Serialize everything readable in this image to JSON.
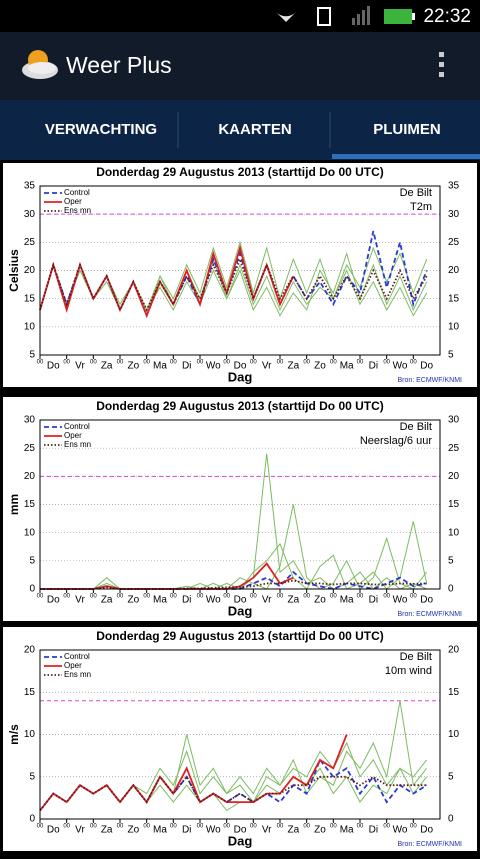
{
  "status_bar": {
    "time": "22:32"
  },
  "app_bar": {
    "title": "Weer Plus"
  },
  "tabs": [
    "VERWACHTING",
    "KAARTEN",
    "PLUIMEN"
  ],
  "chart_data": [
    {
      "type": "line",
      "title": "Donderdag 29 Augustus 2013  (starttijd  Do 00 UTC)",
      "ylabel": "Celsius",
      "xlabel": "Dag",
      "location": "De Bilt",
      "variable": "T2m",
      "source": "Bron: ECMWF/KNMI",
      "x": [
        0,
        0.5,
        1,
        1.5,
        2,
        2.5,
        3,
        3.5,
        4,
        4.5,
        5,
        5.5,
        6,
        6.5,
        7,
        7.5,
        8,
        8.5,
        9,
        9.5,
        10,
        10.5,
        11,
        11.5,
        12,
        12.5,
        13,
        13.5,
        14,
        14.5
      ],
      "xlim": [
        0,
        15
      ],
      "xticks": [
        {
          "value": 0,
          "label": "00"
        },
        {
          "value": 1,
          "label": "00"
        },
        {
          "value": 2,
          "label": "00"
        },
        {
          "value": 3,
          "label": "00"
        },
        {
          "value": 4,
          "label": "00"
        },
        {
          "value": 5,
          "label": "00"
        },
        {
          "value": 6,
          "label": "00"
        },
        {
          "value": 7,
          "label": "00"
        },
        {
          "value": 8,
          "label": "00"
        },
        {
          "value": 9,
          "label": "00"
        },
        {
          "value": 10,
          "label": "00"
        },
        {
          "value": 11,
          "label": "00"
        },
        {
          "value": 12,
          "label": "00"
        },
        {
          "value": 13,
          "label": "00"
        },
        {
          "value": 14,
          "label": "00"
        }
      ],
      "day_ticks": [
        {
          "value": 0.5,
          "label": "Do"
        },
        {
          "value": 1.5,
          "label": "Vr"
        },
        {
          "value": 2.5,
          "label": "Za"
        },
        {
          "value": 3.5,
          "label": "Zo"
        },
        {
          "value": 4.5,
          "label": "Ma"
        },
        {
          "value": 5.5,
          "label": "Di"
        },
        {
          "value": 6.5,
          "label": "Wo"
        },
        {
          "value": 7.5,
          "label": "Do"
        },
        {
          "value": 8.5,
          "label": "Vr"
        },
        {
          "value": 9.5,
          "label": "Za"
        },
        {
          "value": 10.5,
          "label": "Zo"
        },
        {
          "value": 11.5,
          "label": "Ma"
        },
        {
          "value": 12.5,
          "label": "Di"
        },
        {
          "value": 13.5,
          "label": "Wo"
        },
        {
          "value": 14.5,
          "label": "Do"
        }
      ],
      "ylim": [
        5,
        35
      ],
      "yticks": [
        5,
        10,
        15,
        20,
        25,
        30,
        35
      ],
      "threshold": 30,
      "grid": true,
      "series": [
        {
          "color": "#7dbb62",
          "style": "solid",
          "values": [
            13,
            21,
            14,
            21,
            15,
            19,
            13,
            18,
            13,
            19,
            15,
            21,
            16,
            24,
            17,
            25,
            16,
            24,
            15,
            22,
            16,
            22,
            15,
            20,
            14,
            18,
            13,
            17,
            12,
            16
          ]
        },
        {
          "color": "#7dbb62",
          "style": "solid",
          "values": [
            13,
            21,
            14,
            20,
            15,
            19,
            14,
            18,
            13,
            17,
            13,
            18,
            14,
            20,
            15,
            21,
            14,
            19,
            13,
            18,
            14,
            17,
            15,
            21,
            17,
            24,
            18,
            23,
            16,
            22
          ]
        },
        {
          "color": "#7dbb62",
          "style": "solid",
          "values": [
            13,
            21,
            13,
            21,
            15,
            18,
            13,
            18,
            12,
            19,
            14,
            20,
            15,
            22,
            15,
            20,
            13,
            17,
            12,
            16,
            13,
            20,
            16,
            23,
            15,
            21,
            14,
            19,
            13,
            18
          ]
        },
        {
          "name": "Control",
          "color": "#2a3ad0",
          "style": "dashed",
          "values": [
            13,
            21,
            14,
            21,
            15,
            19,
            13,
            18,
            12,
            18,
            14,
            19,
            14,
            22,
            16,
            23,
            15,
            21,
            14,
            19,
            15,
            18,
            14,
            19,
            16,
            27,
            17,
            25,
            14,
            20
          ]
        },
        {
          "name": "Oper",
          "color": "#e02020",
          "style": "solid",
          "values": [
            13,
            21,
            13,
            21,
            15,
            19,
            13,
            18,
            12,
            18,
            14,
            20,
            14,
            23,
            16,
            24,
            15,
            21,
            14,
            19,
            null,
            null,
            null,
            null,
            null,
            null,
            null,
            null,
            null,
            null
          ]
        },
        {
          "name": "Ens mn",
          "color": "#5a1c1c",
          "style": "dotted",
          "values": [
            13,
            21,
            14,
            21,
            15,
            19,
            13,
            18,
            13,
            18,
            14,
            19,
            15,
            21,
            16,
            22,
            15,
            21,
            15,
            19,
            15,
            19,
            15,
            19,
            15,
            20,
            15,
            20,
            15,
            19
          ]
        }
      ]
    },
    {
      "type": "line",
      "title": "Donderdag 29 Augustus 2013  (starttijd  Do 00 UTC)",
      "ylabel": "mm",
      "xlabel": "Dag",
      "location": "De Bilt",
      "variable": "Neerslag/6 uur",
      "source": "Bron: ECMWF/KNMI",
      "x": [
        0,
        0.5,
        1,
        1.5,
        2,
        2.5,
        3,
        3.5,
        4,
        4.5,
        5,
        5.5,
        6,
        6.5,
        7,
        7.5,
        8,
        8.5,
        9,
        9.5,
        10,
        10.5,
        11,
        11.5,
        12,
        12.5,
        13,
        13.5,
        14,
        14.5
      ],
      "xlim": [
        0,
        15
      ],
      "xticks": [
        {
          "value": 0,
          "label": "00"
        },
        {
          "value": 1,
          "label": "00"
        },
        {
          "value": 2,
          "label": "00"
        },
        {
          "value": 3,
          "label": "00"
        },
        {
          "value": 4,
          "label": "00"
        },
        {
          "value": 5,
          "label": "00"
        },
        {
          "value": 6,
          "label": "00"
        },
        {
          "value": 7,
          "label": "00"
        },
        {
          "value": 8,
          "label": "00"
        },
        {
          "value": 9,
          "label": "00"
        },
        {
          "value": 10,
          "label": "00"
        },
        {
          "value": 11,
          "label": "00"
        },
        {
          "value": 12,
          "label": "00"
        },
        {
          "value": 13,
          "label": "00"
        },
        {
          "value": 14,
          "label": "00"
        }
      ],
      "day_ticks": [
        {
          "value": 0.5,
          "label": "Do"
        },
        {
          "value": 1.5,
          "label": "Vr"
        },
        {
          "value": 2.5,
          "label": "Za"
        },
        {
          "value": 3.5,
          "label": "Zo"
        },
        {
          "value": 4.5,
          "label": "Ma"
        },
        {
          "value": 5.5,
          "label": "Di"
        },
        {
          "value": 6.5,
          "label": "Wo"
        },
        {
          "value": 7.5,
          "label": "Do"
        },
        {
          "value": 8.5,
          "label": "Vr"
        },
        {
          "value": 9.5,
          "label": "Za"
        },
        {
          "value": 10.5,
          "label": "Zo"
        },
        {
          "value": 11.5,
          "label": "Ma"
        },
        {
          "value": 12.5,
          "label": "Di"
        },
        {
          "value": 13.5,
          "label": "Wo"
        },
        {
          "value": 14.5,
          "label": "Do"
        }
      ],
      "ylim": [
        0,
        30
      ],
      "yticks": [
        0,
        5,
        10,
        15,
        20,
        25,
        30
      ],
      "threshold": 20,
      "grid": true,
      "series": [
        {
          "color": "#7dbb62",
          "style": "solid",
          "values": [
            0,
            0,
            0,
            0,
            0,
            1,
            0,
            0,
            0,
            0,
            0,
            0,
            0,
            1,
            0,
            0,
            2,
            24,
            3,
            5,
            1,
            2,
            0,
            1,
            3,
            0,
            2,
            0,
            1,
            0
          ]
        },
        {
          "color": "#7dbb62",
          "style": "solid",
          "values": [
            0,
            0,
            0,
            0,
            0,
            0,
            0,
            0,
            0,
            0,
            0,
            0.5,
            0,
            0,
            1,
            0,
            3,
            5,
            8,
            2,
            0,
            4,
            6,
            0,
            1,
            3,
            0,
            2,
            12,
            1
          ]
        },
        {
          "color": "#7dbb62",
          "style": "solid",
          "values": [
            0,
            0,
            0,
            0,
            0,
            2,
            0,
            0,
            0,
            0,
            0,
            0,
            1,
            0,
            0,
            2,
            1,
            0,
            4,
            15,
            2,
            0,
            1,
            5,
            0,
            2,
            9,
            1,
            0,
            3
          ]
        },
        {
          "name": "Control",
          "color": "#2a3ad0",
          "style": "dashed",
          "values": [
            0,
            0,
            0,
            0,
            0,
            0.5,
            0,
            0,
            0,
            0,
            0,
            0,
            0,
            0,
            0,
            0,
            1,
            2,
            0.5,
            3,
            1,
            0.5,
            0,
            1,
            0.5,
            0,
            1,
            2,
            0.5,
            1
          ]
        },
        {
          "name": "Oper",
          "color": "#e02020",
          "style": "solid",
          "values": [
            0,
            0,
            0,
            0,
            0,
            0.5,
            0,
            0,
            0,
            0,
            0,
            0,
            0,
            0,
            0,
            0.5,
            2,
            4.5,
            1,
            2,
            null,
            null,
            null,
            null,
            null,
            null,
            null,
            null,
            null,
            null
          ]
        },
        {
          "name": "Ens mn",
          "color": "#5a1c1c",
          "style": "dotted",
          "values": [
            0,
            0,
            0,
            0,
            0,
            0.3,
            0,
            0,
            0,
            0,
            0,
            0.1,
            0.1,
            0.2,
            0.3,
            0.3,
            0.5,
            1,
            1,
            1.5,
            1,
            1,
            0.8,
            1,
            1,
            0.8,
            0.8,
            1,
            0.9,
            1
          ]
        }
      ]
    },
    {
      "type": "line",
      "title": "Donderdag 29 Augustus 2013  (starttijd  Do 00 UTC)",
      "ylabel": "m/s",
      "xlabel": "Dag",
      "location": "De Bilt",
      "variable": "10m wind",
      "source": "Bron: ECMWF/KNMI",
      "x": [
        0,
        0.5,
        1,
        1.5,
        2,
        2.5,
        3,
        3.5,
        4,
        4.5,
        5,
        5.5,
        6,
        6.5,
        7,
        7.5,
        8,
        8.5,
        9,
        9.5,
        10,
        10.5,
        11,
        11.5,
        12,
        12.5,
        13,
        13.5,
        14,
        14.5
      ],
      "xlim": [
        0,
        15
      ],
      "xticks": [
        {
          "value": 0,
          "label": "00"
        },
        {
          "value": 1,
          "label": "00"
        },
        {
          "value": 2,
          "label": "00"
        },
        {
          "value": 3,
          "label": "00"
        },
        {
          "value": 4,
          "label": "00"
        },
        {
          "value": 5,
          "label": "00"
        },
        {
          "value": 6,
          "label": "00"
        },
        {
          "value": 7,
          "label": "00"
        },
        {
          "value": 8,
          "label": "00"
        },
        {
          "value": 9,
          "label": "00"
        },
        {
          "value": 10,
          "label": "00"
        },
        {
          "value": 11,
          "label": "00"
        },
        {
          "value": 12,
          "label": "00"
        },
        {
          "value": 13,
          "label": "00"
        },
        {
          "value": 14,
          "label": "00"
        }
      ],
      "day_ticks": [
        {
          "value": 0.5,
          "label": "Do"
        },
        {
          "value": 1.5,
          "label": "Vr"
        },
        {
          "value": 2.5,
          "label": "Za"
        },
        {
          "value": 3.5,
          "label": "Zo"
        },
        {
          "value": 4.5,
          "label": "Ma"
        },
        {
          "value": 5.5,
          "label": "Di"
        },
        {
          "value": 6.5,
          "label": "Wo"
        },
        {
          "value": 7.5,
          "label": "Do"
        },
        {
          "value": 8.5,
          "label": "Vr"
        },
        {
          "value": 9.5,
          "label": "Za"
        },
        {
          "value": 10.5,
          "label": "Zo"
        },
        {
          "value": 11.5,
          "label": "Ma"
        },
        {
          "value": 12.5,
          "label": "Di"
        },
        {
          "value": 13.5,
          "label": "Wo"
        },
        {
          "value": 14.5,
          "label": "Do"
        }
      ],
      "ylim": [
        0,
        20
      ],
      "yticks": [
        0,
        5,
        10,
        15,
        20
      ],
      "threshold": 14,
      "grid": true,
      "series": [
        {
          "color": "#7dbb62",
          "style": "solid",
          "values": [
            1,
            3,
            2,
            4,
            3,
            4,
            2,
            4,
            3,
            6,
            4,
            8,
            3,
            5,
            3,
            4,
            2,
            5,
            4,
            6,
            5,
            8,
            6,
            9,
            5,
            7,
            4,
            6,
            3,
            5
          ]
        },
        {
          "color": "#7dbb62",
          "style": "solid",
          "values": [
            1,
            3,
            2,
            4,
            3,
            4,
            2,
            4,
            2,
            5,
            3,
            10,
            4,
            6,
            3,
            5,
            3,
            6,
            4,
            7,
            3,
            5,
            4,
            8,
            6,
            9,
            5,
            14,
            4,
            6
          ]
        },
        {
          "color": "#7dbb62",
          "style": "solid",
          "values": [
            1,
            3,
            2,
            4,
            3,
            4,
            2,
            4,
            2,
            4,
            2,
            4,
            2,
            3,
            1,
            2,
            2,
            4,
            3,
            5,
            4,
            6,
            3,
            5,
            2,
            4,
            3,
            6,
            5,
            7
          ]
        },
        {
          "name": "Control",
          "color": "#2a3ad0",
          "style": "dashed",
          "values": [
            1,
            3,
            2,
            4,
            3,
            4,
            2,
            4,
            2,
            5,
            3,
            5,
            2,
            3,
            2,
            3,
            2,
            3,
            2,
            4,
            3,
            7,
            5,
            6,
            3,
            5,
            2,
            4,
            3,
            4
          ]
        },
        {
          "name": "Oper",
          "color": "#e02020",
          "style": "solid",
          "values": [
            1,
            3,
            2,
            4,
            3,
            4,
            2,
            4,
            2,
            5,
            3,
            6,
            2,
            3,
            2,
            2,
            2,
            3,
            3,
            5,
            4,
            7,
            6,
            10,
            null,
            null,
            null,
            null,
            null,
            null
          ]
        },
        {
          "name": "Ens mn",
          "color": "#5a1c1c",
          "style": "dotted",
          "values": [
            1,
            3,
            2,
            4,
            3,
            4,
            2,
            4,
            2,
            5,
            3,
            5,
            2,
            3,
            2,
            3,
            2,
            3,
            3,
            4,
            4,
            5,
            5,
            5,
            4,
            5,
            4,
            4,
            4,
            4
          ]
        }
      ]
    }
  ]
}
